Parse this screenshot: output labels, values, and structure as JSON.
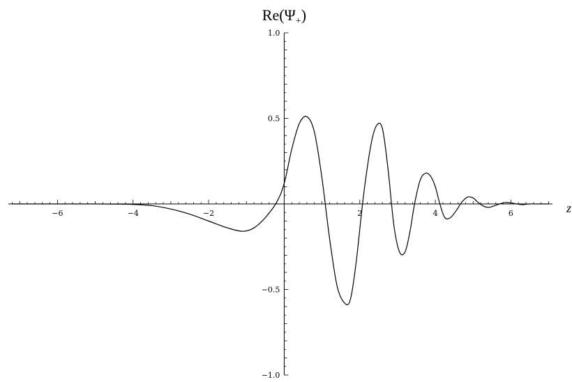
{
  "chart_data": {
    "type": "line",
    "title": "",
    "xlabel": "z",
    "ylabel": "Re(Ψ+)",
    "ylabel_parts": {
      "prefix": "Re(Ψ",
      "subscript": "+",
      "suffix": ")"
    },
    "xlim": [
      -7.3,
      7.1
    ],
    "ylim": [
      -1.0,
      1.0
    ],
    "grid": false,
    "x_ticks": [
      -6,
      -4,
      -2,
      2,
      4,
      6
    ],
    "x_tick_labels": [
      "−6",
      "−4",
      "−2",
      "2",
      "4",
      "6"
    ],
    "y_ticks": [
      -1.0,
      -0.5,
      0.5,
      1.0
    ],
    "y_tick_labels": [
      "−1.0",
      "−0.5",
      "0.5",
      "1.0"
    ],
    "series": [
      {
        "x": [
          -7.2,
          -6.0,
          -5.0,
          -4.5,
          -4.0,
          -3.5,
          -3.0,
          -2.5,
          -2.0,
          -1.5,
          -1.1,
          -0.8,
          -0.5,
          -0.2,
          0.0,
          0.2,
          0.4,
          0.6,
          0.8,
          1.0,
          1.2,
          1.4,
          1.6,
          1.75,
          1.9,
          2.1,
          2.3,
          2.45,
          2.6,
          2.75,
          2.9,
          3.05,
          3.2,
          3.33,
          3.45,
          3.6,
          3.75,
          3.88,
          4.0,
          4.12,
          4.25,
          4.4,
          4.55,
          4.7,
          4.85,
          5.0,
          5.1,
          5.25,
          5.4,
          5.55,
          5.7,
          5.85,
          6.0,
          6.15,
          6.3,
          6.5,
          6.75,
          7.0
        ],
        "y": [
          0.0,
          0.0,
          0.0,
          -0.001,
          -0.003,
          -0.01,
          -0.03,
          -0.06,
          -0.1,
          -0.14,
          -0.16,
          -0.14,
          -0.08,
          0.01,
          0.12,
          0.32,
          0.47,
          0.51,
          0.42,
          0.15,
          -0.2,
          -0.48,
          -0.58,
          -0.56,
          -0.35,
          0.05,
          0.35,
          0.46,
          0.44,
          0.2,
          -0.12,
          -0.28,
          -0.28,
          -0.16,
          0.0,
          0.14,
          0.18,
          0.16,
          0.1,
          0.0,
          -0.08,
          -0.08,
          -0.04,
          0.01,
          0.04,
          0.035,
          0.015,
          -0.01,
          -0.02,
          -0.012,
          0.0,
          0.008,
          0.006,
          0.0,
          -0.004,
          0.0,
          0.0,
          0.0
        ]
      }
    ]
  }
}
